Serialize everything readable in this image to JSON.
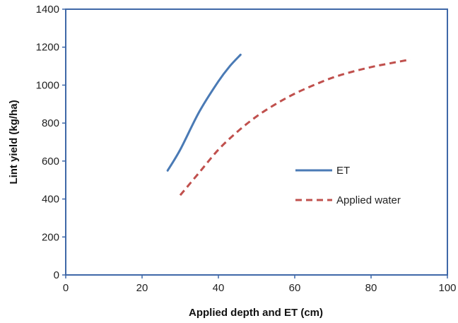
{
  "chart_data": {
    "type": "line",
    "title": "",
    "xlabel": "Applied depth and ET (cm)",
    "ylabel": "Lint yield (kg/ha)",
    "xlim": [
      0,
      100
    ],
    "ylim": [
      0,
      1400
    ],
    "xticks": [
      0,
      20,
      40,
      60,
      80,
      100
    ],
    "yticks": [
      0,
      200,
      400,
      600,
      800,
      1000,
      1200,
      1400
    ],
    "grid": false,
    "legend_position": "right",
    "series": [
      {
        "name": "ET",
        "color": "#4a7ab5",
        "style": "solid",
        "x": [
          26.7,
          30,
          35,
          40,
          43,
          45.8
        ],
        "y": [
          550,
          660,
          860,
          1020,
          1100,
          1160
        ]
      },
      {
        "name": "Applied water",
        "color": "#c0504d",
        "style": "dashed",
        "x": [
          30,
          35,
          40,
          45,
          50,
          55,
          60,
          65,
          70,
          75,
          80,
          85,
          90.3
        ],
        "y": [
          420,
          540,
          660,
          755,
          835,
          900,
          955,
          1000,
          1040,
          1070,
          1095,
          1115,
          1135
        ]
      }
    ]
  }
}
